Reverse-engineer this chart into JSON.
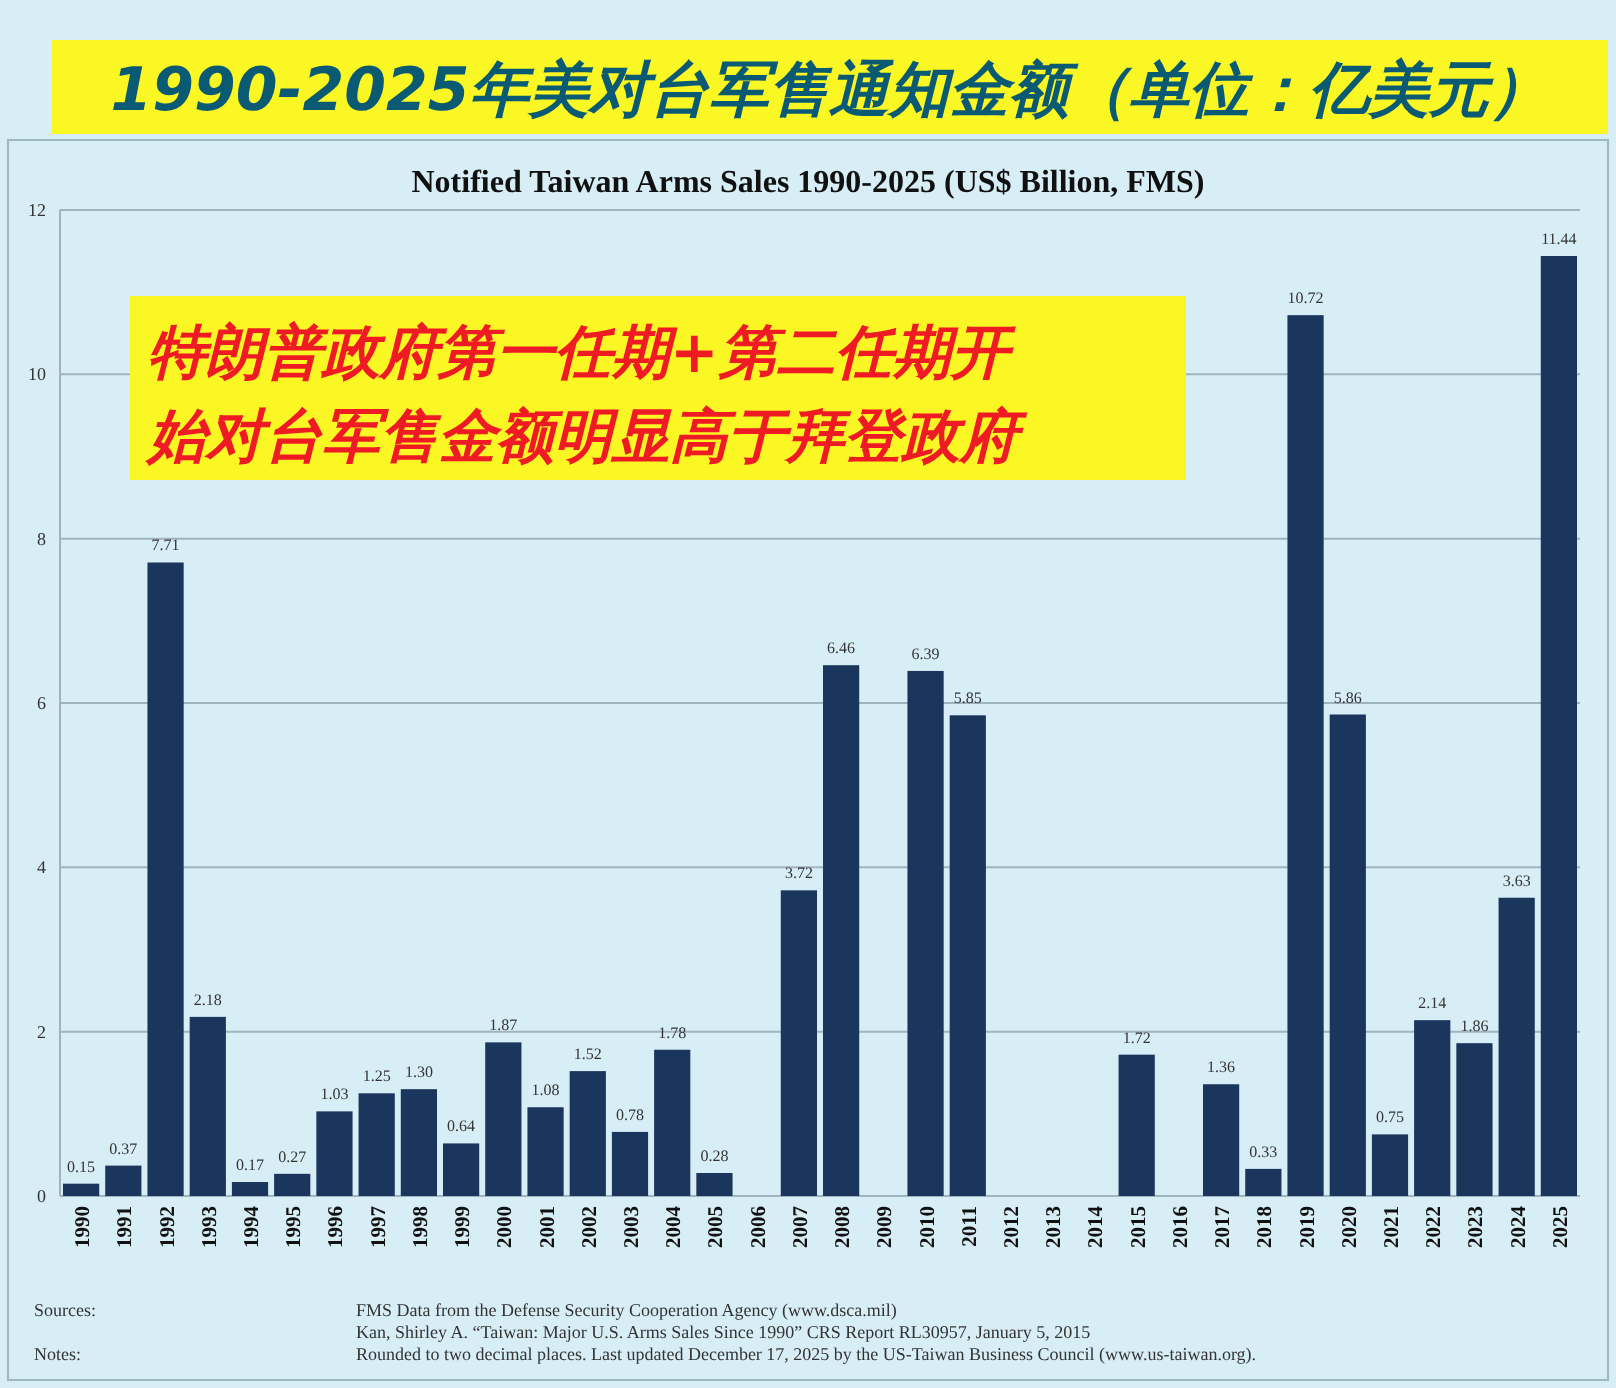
{
  "chart_data": {
    "type": "bar",
    "title": "1990-2025年美对台军售通知金额（单位：亿美元）",
    "subtitle": "Notified Taiwan Arms Sales 1990-2025 (US$ Billion, FMS)",
    "categories": [
      "1990",
      "1991",
      "1992",
      "1993",
      "1994",
      "1995",
      "1996",
      "1997",
      "1998",
      "1999",
      "2000",
      "2001",
      "2002",
      "2003",
      "2004",
      "2005",
      "2006",
      "2007",
      "2008",
      "2009",
      "2010",
      "2011",
      "2012",
      "2013",
      "2014",
      "2015",
      "2016",
      "2017",
      "2018",
      "2019",
      "2020",
      "2021",
      "2022",
      "2023",
      "2024",
      "2025"
    ],
    "values": [
      0.15,
      0.37,
      7.71,
      2.18,
      0.17,
      0.27,
      1.03,
      1.25,
      1.3,
      0.64,
      1.87,
      1.08,
      1.52,
      0.78,
      1.78,
      0.28,
      null,
      3.72,
      6.46,
      null,
      6.39,
      5.85,
      null,
      null,
      null,
      1.72,
      null,
      1.36,
      0.33,
      10.72,
      5.86,
      0.75,
      2.14,
      1.86,
      3.63,
      11.44
    ],
    "value_labels": [
      "0.15",
      "0.37",
      "7.71",
      "2.18",
      "0.17",
      "0.27",
      "1.03",
      "1.25",
      "1.30",
      "0.64",
      "1.87",
      "1.08",
      "1.52",
      "0.78",
      "1.78",
      "0.28",
      null,
      "3.72",
      "6.46",
      null,
      "6.39",
      "5.85",
      null,
      null,
      null,
      "1.72",
      null,
      "1.36",
      "0.33",
      "10.72",
      "5.86",
      "0.75",
      "2.14",
      "1.86",
      "3.63",
      "11.44"
    ],
    "color": "#1b365d",
    "ylim": [
      0,
      12
    ],
    "yticks": [
      0,
      2,
      4,
      6,
      8,
      10,
      12
    ],
    "grid": "y",
    "annotations": [
      "特朗普政府第一任期+第二任期开始对台军售金额明显高于拜登政府",
      "Sources:",
      "FMS Data from the Defense Security Cooperation Agency (www.dsca.mil)",
      "Kan, Shirley A. “Taiwan: Major U.S. Arms Sales Since 1990” CRS Report RL30957, January 5, 2015",
      "Notes:",
      "Rounded to two decimal places. Last updated December 17, 2025 by the US-Taiwan Business Council (www.us-taiwan.org)."
    ]
  }
}
